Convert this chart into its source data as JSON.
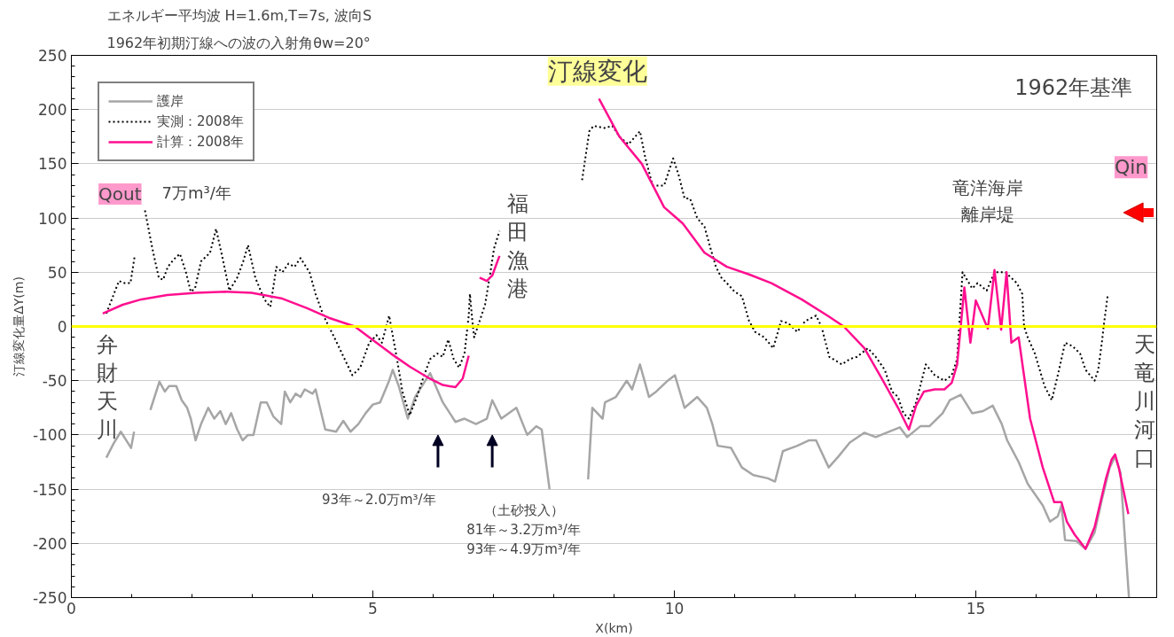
{
  "chart_data": {
    "type": "line",
    "title": "エネルギー平均波  H=1.6m,T=7s, 波向S",
    "subtitle": "1962年初期汀線への波の入射角θw=20°",
    "xlabel": "X(km)",
    "ylabel": "汀線変化量ΔY(m)",
    "xlim": [
      0,
      18
    ],
    "xticks": [
      0,
      5,
      10,
      15
    ],
    "ylim": [
      -250,
      250
    ],
    "yticks": [
      -250,
      -200,
      -150,
      -100,
      -50,
      0,
      50,
      100,
      150,
      200,
      250
    ],
    "grid": "y",
    "legend": "top left",
    "ref_lines": [
      {
        "axis": "y",
        "value": 0,
        "color": "#ffff00"
      }
    ],
    "annotations": [
      "汀線変化",
      "1962年基準",
      "Qout",
      "7万m³/年",
      "Qin",
      "竜洋海岸",
      "離岸堤",
      "福田漁港",
      "弁財天川",
      "天竜川河口",
      "93年～2.0万m³/年",
      "（土砂投入）",
      "81年～3.2万m³/年",
      "93年～4.9万m³/年"
    ],
    "series": [
      {
        "name": "護岸",
        "color": "#a6a6a6",
        "line_style": "solid",
        "x": [
          0.58,
          0.7,
          0.82,
          0.99,
          1.04,
          1.2,
          1.31,
          1.46,
          1.55,
          1.62,
          1.74,
          1.83,
          1.92,
          1.98,
          2.06,
          2.15,
          2.27,
          2.37,
          2.47,
          2.56,
          2.65,
          2.75,
          2.84,
          2.93,
          3.02,
          3.14,
          3.24,
          3.35,
          3.48,
          3.54,
          3.63,
          3.72,
          3.8,
          3.87,
          4.0,
          4.05,
          4.21,
          4.39,
          4.51,
          4.63,
          4.76,
          4.88,
          5.0,
          5.12,
          5.27,
          5.33,
          5.43,
          5.58,
          5.7,
          5.95,
          6.16,
          6.37,
          6.52,
          6.71,
          6.89,
          6.98,
          7.13,
          7.38,
          7.56,
          7.71,
          7.8,
          7.93,
          8.3,
          8.57,
          8.64,
          8.81,
          8.85,
          9.03,
          9.21,
          9.3,
          9.43,
          9.58,
          9.7,
          9.89,
          10.01,
          10.17,
          10.38,
          10.54,
          10.63,
          10.72,
          10.94,
          11.12,
          11.31,
          11.55,
          11.67,
          11.8,
          12.04,
          12.23,
          12.35,
          12.56,
          12.72,
          12.91,
          13.15,
          13.34,
          13.52,
          13.74,
          13.86,
          14.08,
          14.23,
          14.45,
          14.57,
          14.75,
          14.94,
          15.12,
          15.28,
          15.43,
          15.52,
          15.71,
          15.86,
          16.11,
          16.23,
          16.36,
          16.42,
          16.48,
          16.67,
          16.82,
          16.97,
          17.09,
          17.22,
          17.31,
          17.4,
          17.46,
          17.54
        ],
        "values": [
          -121,
          -108,
          -97,
          -112,
          -97,
          null,
          -77,
          -51,
          -60,
          -55,
          -55,
          -68,
          -75,
          -85,
          -105,
          -90,
          -75,
          -85,
          -78,
          -90,
          -80,
          -95,
          -105,
          -100,
          -100,
          -70,
          -70,
          -83,
          -90,
          -60,
          -70,
          -62,
          -65,
          -58,
          -62,
          -58,
          -95,
          -97,
          -87,
          -97,
          -90,
          -80,
          -72,
          -70,
          -50,
          -40,
          -55,
          -85,
          -65,
          -43,
          -70,
          -88,
          -85,
          -90,
          -85,
          -68,
          -85,
          -75,
          -100,
          -92,
          -95,
          -150,
          null,
          -141,
          -75,
          -85,
          -70,
          -65,
          -50,
          -58,
          -35,
          -65,
          -60,
          -50,
          -45,
          -75,
          -65,
          -75,
          -90,
          -110,
          -112,
          -130,
          -137,
          -140,
          -143,
          -115,
          -110,
          -105,
          -105,
          -130,
          -120,
          -107,
          -98,
          -102,
          -98,
          -93,
          -102,
          -92,
          -92,
          -80,
          -68,
          -63,
          -80,
          -78,
          -73,
          -90,
          -105,
          -125,
          -145,
          -165,
          -180,
          -175,
          -165,
          -197,
          -198,
          -205,
          -190,
          -160,
          -130,
          -120,
          -135,
          -185,
          -250
        ]
      },
      {
        "name": "実測：2008年",
        "color": "#000000",
        "line_style": "dotted",
        "x": [
          0.58,
          0.67,
          0.79,
          0.88,
          0.98,
          1.05,
          1.12,
          1.22,
          1.35,
          1.45,
          1.52,
          1.6,
          1.7,
          1.8,
          1.9,
          1.98,
          2.05,
          2.15,
          2.3,
          2.4,
          2.5,
          2.62,
          2.75,
          2.85,
          2.93,
          3.05,
          3.2,
          3.3,
          3.4,
          3.5,
          3.6,
          3.7,
          3.8,
          3.95,
          4.05,
          4.18,
          4.36,
          4.66,
          4.79,
          4.94,
          5.06,
          5.15,
          5.27,
          5.4,
          5.49,
          5.61,
          5.73,
          5.85,
          5.95,
          6.07,
          6.16,
          6.25,
          6.34,
          6.43,
          6.52,
          6.59,
          6.61,
          6.65,
          6.68,
          6.77,
          6.86,
          6.95,
          7.01,
          7.1,
          8.0,
          8.47,
          8.59,
          8.66,
          8.84,
          8.97,
          9.09,
          9.24,
          9.43,
          9.52,
          9.64,
          9.83,
          9.98,
          10.07,
          10.17,
          10.26,
          10.38,
          10.5,
          10.6,
          10.69,
          10.78,
          10.87,
          11.0,
          11.12,
          11.24,
          11.34,
          11.49,
          11.64,
          11.77,
          11.89,
          12.04,
          12.17,
          12.35,
          12.44,
          12.57,
          12.78,
          12.91,
          13.03,
          13.21,
          13.34,
          13.49,
          13.61,
          13.71,
          13.8,
          13.89,
          14.01,
          14.17,
          14.32,
          14.48,
          14.6,
          14.69,
          14.78,
          14.94,
          15.03,
          15.18,
          15.31,
          15.49,
          15.68,
          15.77,
          15.8,
          15.86,
          15.98,
          16.14,
          16.26,
          16.38,
          16.48,
          16.6,
          16.73,
          16.82,
          16.97,
          17.03,
          17.09,
          17.12,
          17.19
        ],
        "values": [
          12,
          25,
          42,
          40,
          40,
          65,
          null,
          107,
          70,
          45,
          43,
          55,
          62,
          67,
          50,
          32,
          35,
          60,
          68,
          90,
          65,
          33,
          45,
          60,
          75,
          45,
          25,
          18,
          55,
          50,
          58,
          55,
          63,
          50,
          30,
          10,
          -10,
          -45,
          -38,
          -15,
          -8,
          -15,
          10,
          -30,
          -60,
          -82,
          -65,
          -45,
          -30,
          -25,
          -28,
          -12,
          -30,
          -38,
          -25,
          10,
          30,
          5,
          -10,
          5,
          20,
          50,
          72,
          88,
          null,
          135,
          180,
          185,
          183,
          185,
          175,
          168,
          180,
          155,
          130,
          130,
          155,
          140,
          118,
          118,
          100,
          92,
          72,
          55,
          45,
          40,
          32,
          28,
          5,
          -5,
          -10,
          -20,
          5,
          3,
          -5,
          5,
          10,
          0,
          -28,
          -35,
          -30,
          -28,
          -20,
          -28,
          -40,
          -60,
          -65,
          -80,
          -85,
          -70,
          -35,
          -45,
          -50,
          -45,
          -30,
          50,
          35,
          40,
          33,
          50,
          50,
          40,
          30,
          0,
          -10,
          -25,
          -55,
          -68,
          -40,
          -15,
          -18,
          -25,
          -40,
          -50,
          -40,
          -15,
          0,
          30
        ]
      },
      {
        "name": "計算：2008年",
        "color": "#ff0f8f",
        "line_style": "solid",
        "x": [
          0.52,
          0.85,
          1.16,
          1.59,
          2.07,
          2.56,
          2.99,
          3.48,
          3.9,
          4.27,
          4.7,
          4.94,
          5.3,
          5.61,
          5.91,
          6.16,
          6.37,
          6.49,
          6.59,
          6.7,
          6.77,
          6.89,
          6.98,
          7.1,
          8.0,
          8.75,
          9.09,
          9.46,
          9.83,
          10.14,
          10.5,
          10.87,
          11.24,
          11.61,
          12.11,
          12.54,
          12.81,
          13.15,
          13.46,
          13.71,
          13.89,
          14.01,
          14.14,
          14.32,
          14.48,
          14.6,
          14.69,
          14.75,
          14.81,
          14.91,
          15.0,
          15.2,
          15.31,
          15.42,
          15.51,
          15.59,
          15.71,
          15.9,
          16.11,
          16.3,
          16.42,
          16.51,
          16.64,
          16.82,
          16.97,
          17.16,
          17.25,
          17.31,
          17.37,
          17.53
        ],
        "values": [
          12,
          20,
          25,
          29,
          31,
          32,
          31,
          26,
          17,
          8,
          0,
          -10,
          -25,
          -37,
          -47,
          -54,
          -56,
          -48,
          -27,
          null,
          45,
          42,
          47,
          65,
          null,
          210,
          175,
          150,
          110,
          95,
          68,
          55,
          48,
          40,
          25,
          10,
          0,
          -20,
          -50,
          -75,
          -95,
          -73,
          -60,
          -58,
          -58,
          -52,
          -35,
          0,
          36,
          -15,
          24,
          -2,
          52,
          -3,
          50,
          -15,
          -10,
          -85,
          -130,
          -162,
          -162,
          -180,
          -192,
          -205,
          -185,
          -140,
          -123,
          -118,
          -130,
          -173
        ]
      }
    ]
  }
}
